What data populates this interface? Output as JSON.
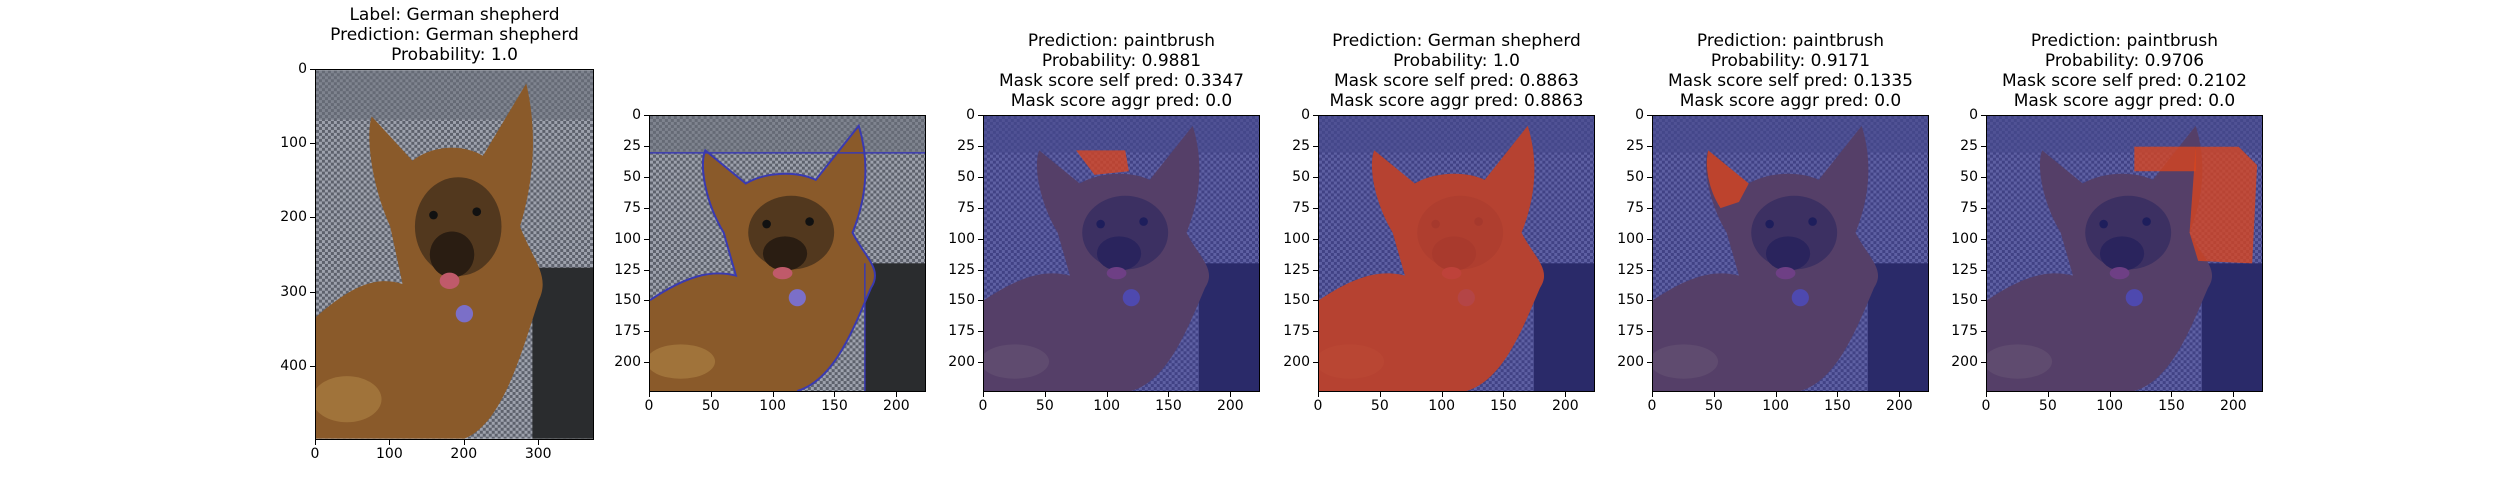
{
  "figure": {
    "panels": [
      {
        "id": "original",
        "title_lines": [
          "Label: German shepherd",
          "Prediction: German shepherd",
          "Probability: 1.0"
        ],
        "x_ticks": [
          "0",
          "100",
          "200",
          "300"
        ],
        "y_ticks": [
          "0",
          "100",
          "200",
          "300",
          "400"
        ],
        "x_range": [
          0,
          375
        ],
        "y_range": [
          0,
          500
        ],
        "overlay": "none"
      },
      {
        "id": "segmentation",
        "title_lines": [],
        "x_ticks": [
          "0",
          "50",
          "100",
          "150",
          "200"
        ],
        "y_ticks": [
          "0",
          "25",
          "50",
          "75",
          "100",
          "125",
          "150",
          "175",
          "200"
        ],
        "x_range": [
          0,
          224
        ],
        "y_range": [
          0,
          224
        ],
        "overlay": "outline"
      },
      {
        "id": "mask-1",
        "title_lines": [
          "Prediction: paintbrush",
          "Probability: 0.9881",
          "Mask score self pred: 0.3347",
          "Mask score aggr pred: 0.0"
        ],
        "x_ticks": [
          "0",
          "50",
          "100",
          "150",
          "200"
        ],
        "y_ticks": [
          "0",
          "25",
          "50",
          "75",
          "100",
          "125",
          "150",
          "175",
          "200"
        ],
        "x_range": [
          0,
          224
        ],
        "y_range": [
          0,
          224
        ],
        "overlay": "left-ear-tip"
      },
      {
        "id": "mask-2",
        "title_lines": [
          "Prediction: German shepherd",
          "Probability: 1.0",
          "Mask score self pred: 0.8863",
          "Mask score aggr pred: 0.8863"
        ],
        "x_ticks": [
          "0",
          "50",
          "100",
          "150",
          "200"
        ],
        "y_ticks": [
          "0",
          "25",
          "50",
          "75",
          "100",
          "125",
          "150",
          "175",
          "200"
        ],
        "x_range": [
          0,
          224
        ],
        "y_range": [
          0,
          224
        ],
        "overlay": "dog-body"
      },
      {
        "id": "mask-3",
        "title_lines": [
          "Prediction: paintbrush",
          "Probability: 0.9171",
          "Mask score self pred: 0.1335",
          "Mask score aggr pred: 0.0"
        ],
        "x_ticks": [
          "0",
          "50",
          "100",
          "150",
          "200"
        ],
        "y_ticks": [
          "0",
          "25",
          "50",
          "75",
          "100",
          "125",
          "150",
          "175",
          "200"
        ],
        "x_range": [
          0,
          224
        ],
        "y_range": [
          0,
          224
        ],
        "overlay": "left-ear"
      },
      {
        "id": "mask-4",
        "title_lines": [
          "Prediction: paintbrush",
          "Probability: 0.9706",
          "Mask score self pred: 0.2102",
          "Mask score aggr pred: 0.0"
        ],
        "x_ticks": [
          "0",
          "50",
          "100",
          "150",
          "200"
        ],
        "y_ticks": [
          "0",
          "25",
          "50",
          "75",
          "100",
          "125",
          "150",
          "175",
          "200"
        ],
        "x_range": [
          0,
          224
        ],
        "y_range": [
          0,
          224
        ],
        "overlay": "right-background"
      }
    ],
    "colors": {
      "mask_tint": "#2a2a9a",
      "highlight": "#e0451a",
      "outline": "#3a3ab0"
    }
  }
}
